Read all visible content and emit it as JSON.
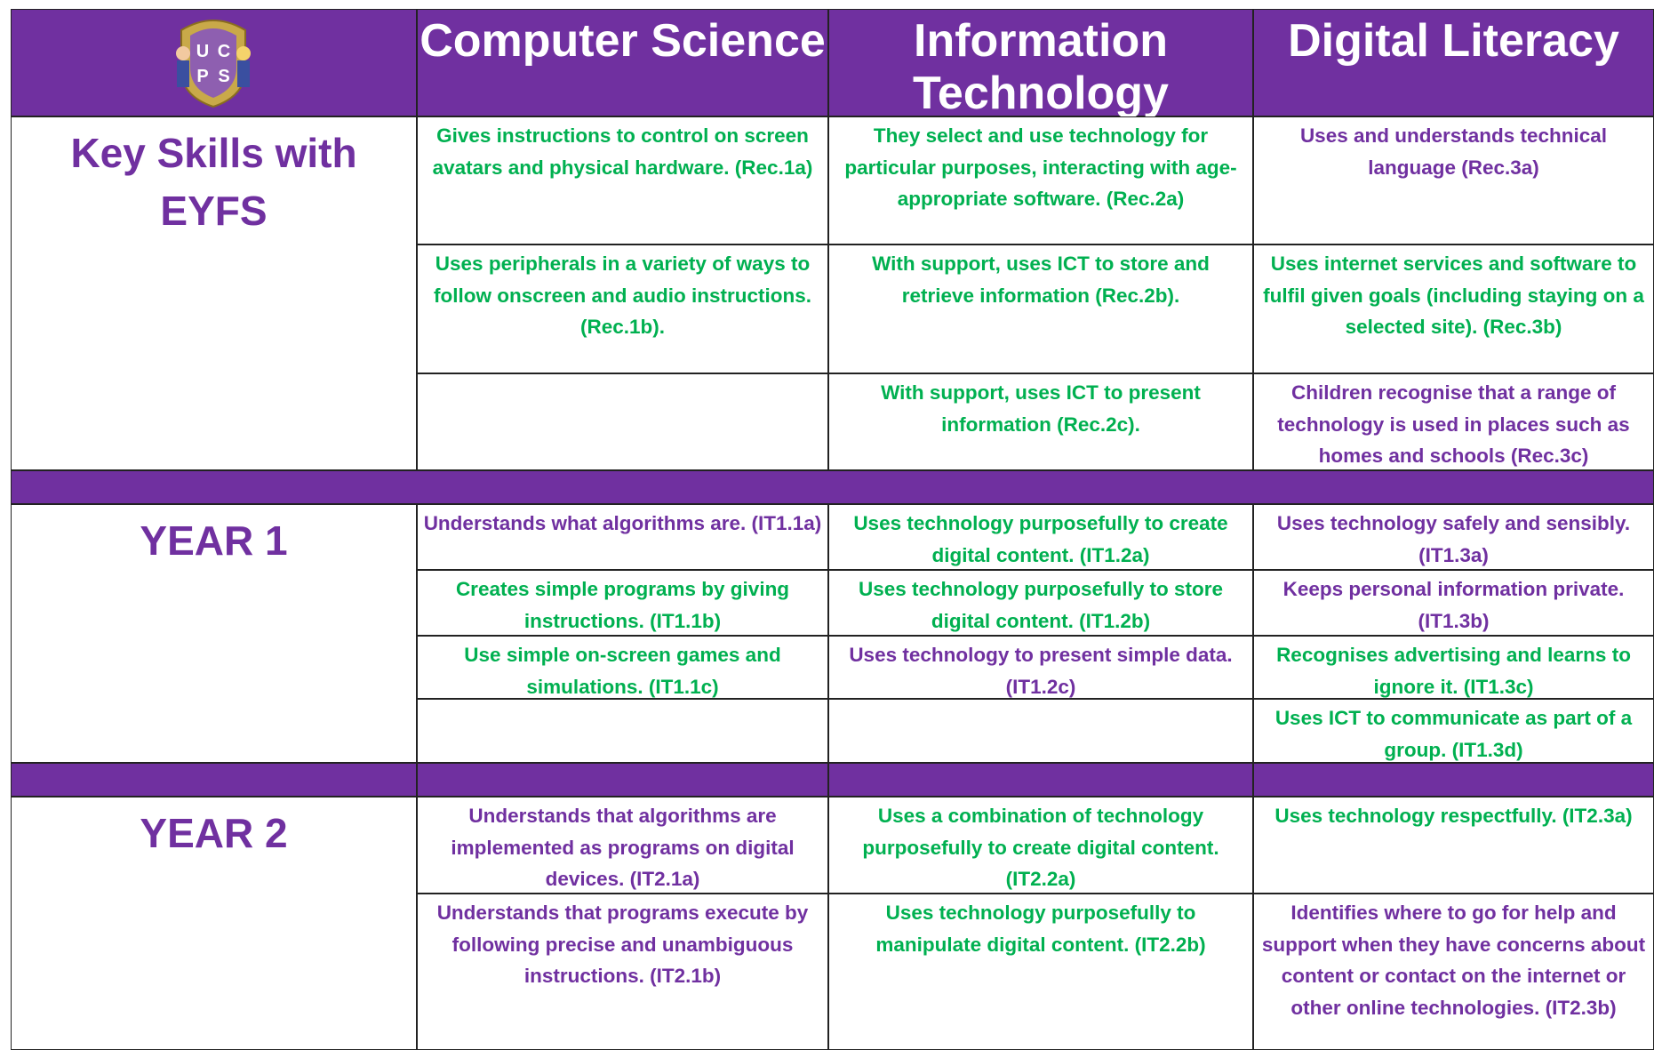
{
  "logo": {
    "letters": [
      "U",
      "C",
      "P",
      "S"
    ]
  },
  "header": {
    "columns": [
      "Computer Science",
      "Information Technology",
      "Digital Literacy"
    ]
  },
  "sections": [
    {
      "label": "Key Skills with EYFS",
      "cs": [
        "Gives instructions to control on screen avatars and physical hardware. (Rec.1a)",
        "Uses peripherals in a variety of ways to follow onscreen and audio instructions. (Rec.1b)."
      ],
      "it": [
        "They select and use technology for particular purposes, interacting with age-appropriate software. (Rec.2a)",
        "With support, uses ICT to store and retrieve information (Rec.2b).",
        "With support, uses ICT to present information (Rec.2c)."
      ],
      "dl": [
        "Uses and understands technical language (Rec.3a)",
        "Uses internet services and software to fulfil given goals (including staying on a selected site). (Rec.3b)",
        "Children recognise that a range of technology is used in places such as homes and schools (Rec.3c)"
      ]
    },
    {
      "label": "YEAR 1",
      "cs": [
        "Understands what algorithms are. (IT1.1a)",
        "Creates simple programs by giving instructions. (IT1.1b)",
        "Use simple on-screen games and simulations. (IT1.1c)"
      ],
      "it": [
        "Uses technology purposefully to create digital content. (IT1.2a)",
        "Uses technology purposefully to store digital content. (IT1.2b)",
        "Uses technology to present simple data. (IT1.2c)"
      ],
      "dl": [
        "Uses technology safely and sensibly. (IT1.3a)",
        "Keeps personal information private. (IT1.3b)",
        "Recognises advertising and learns to ignore it. (IT1.3c)",
        "Uses ICT to communicate as part of a group. (IT1.3d)"
      ]
    },
    {
      "label": "YEAR 2",
      "cs": [
        "Understands that algorithms are implemented as programs on digital devices. (IT2.1a)",
        "Understands that programs execute by following precise and unambiguous instructions. (IT2.1b)"
      ],
      "it": [
        "Uses a combination of technology purposefully to create digital content. (IT2.2a)",
        "Uses technology purposefully to manipulate digital content. (IT2.2b)"
      ],
      "dl": [
        "Uses technology respectfully. (IT2.3a)",
        "Identifies where to go for help and support when they have concerns about content or contact on the internet or other online technologies. (IT2.3b)"
      ]
    }
  ]
}
